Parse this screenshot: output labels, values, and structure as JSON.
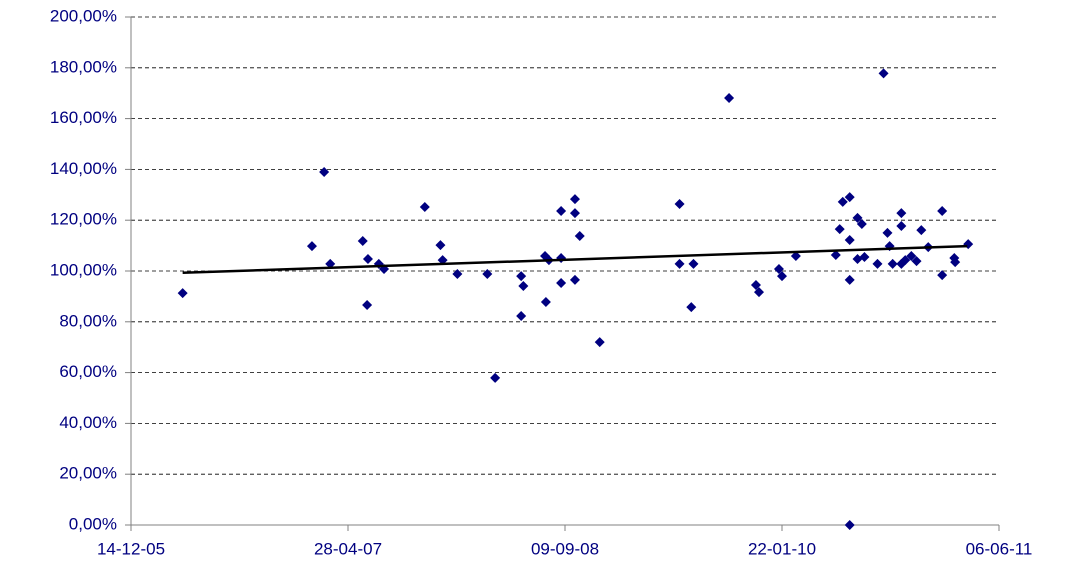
{
  "chart_data": {
    "type": "scatter",
    "color": "#000080",
    "x": [
      "2006-04-12",
      "2007-02-04",
      "2007-03-04",
      "2007-03-18",
      "2007-06-01",
      "2007-06-13",
      "2007-06-11",
      "2007-07-08",
      "2007-07-20",
      "2007-10-22",
      "2007-11-27",
      "2007-12-02",
      "2008-01-05",
      "2008-03-14",
      "2008-04-01",
      "2008-05-31",
      "2008-06-05",
      "2008-05-31",
      "2008-07-27",
      "2008-07-25",
      "2008-08-03",
      "2008-08-31",
      "2008-08-31",
      "2008-08-31",
      "2008-10-02",
      "2008-10-02",
      "2008-10-02",
      "2008-10-13",
      "2008-11-28",
      "2009-05-31",
      "2009-05-31",
      "2009-06-27",
      "2009-07-02",
      "2009-09-22",
      "2009-11-23",
      "2009-11-30",
      "2010-01-15",
      "2010-01-22",
      "2010-02-23",
      "2010-05-26",
      "2010-06-04",
      "2010-06-11",
      "2010-06-27",
      "2010-06-27",
      "2010-06-27",
      "2010-06-27",
      "2010-07-15",
      "2010-07-15",
      "2010-07-25",
      "2010-07-31",
      "2010-08-30",
      "2010-09-13",
      "2010-09-22",
      "2010-09-27",
      "2010-10-04",
      "2010-10-24",
      "2010-10-24",
      "2010-10-24",
      "2010-11-02",
      "2010-11-16",
      "2010-11-28",
      "2010-12-09",
      "2010-12-25",
      "2011-01-26",
      "2011-01-26",
      "2011-02-23",
      "2011-02-25",
      "2011-03-27"
    ],
    "values": [
      91.3,
      109.8,
      139,
      102.8,
      111.8,
      104.7,
      86.6,
      102.8,
      100.8,
      125.2,
      110.2,
      104.3,
      98.8,
      98.8,
      57.9,
      98,
      94.1,
      82.3,
      87.8,
      105.9,
      104.3,
      123.6,
      105.1,
      95.3,
      128.3,
      122.8,
      96.5,
      113.8,
      72,
      126.4,
      102.8,
      85.8,
      102.8,
      168.1,
      94.5,
      91.7,
      100.8,
      98,
      105.9,
      106.3,
      116.5,
      127.2,
      129.1,
      112.2,
      96.5,
      0,
      120.9,
      104.7,
      118.5,
      105.5,
      102.8,
      177.8,
      115,
      109.8,
      102.8,
      122.8,
      117.7,
      102.8,
      104.3,
      105.9,
      103.9,
      116.1,
      109.4,
      123.6,
      98.4,
      105.1,
      103.5,
      110.6
    ],
    "trendline": {
      "x": [
        "2006-04-12",
        "2011-03-25"
      ],
      "values": [
        99.3,
        109.8
      ],
      "color": "#000000"
    },
    "xlim": [
      "2005-12-14",
      "2011-06-06"
    ],
    "xticks": [
      {
        "value": "2005-12-14",
        "label": "14-12-05"
      },
      {
        "value": "2007-04-28",
        "label": "28-04-07"
      },
      {
        "value": "2008-09-09",
        "label": "09-09-08"
      },
      {
        "value": "2010-01-22",
        "label": "22-01-10"
      },
      {
        "value": "2011-06-06",
        "label": "06-06-11"
      }
    ],
    "ylim": [
      0,
      200
    ],
    "yticks": [
      {
        "value": 0,
        "label": "0,00%"
      },
      {
        "value": 20,
        "label": "20,00%"
      },
      {
        "value": 40,
        "label": "40,00%"
      },
      {
        "value": 60,
        "label": "60,00%"
      },
      {
        "value": 80,
        "label": "80,00%"
      },
      {
        "value": 100,
        "label": "100,00%"
      },
      {
        "value": 120,
        "label": "120,00%"
      },
      {
        "value": 140,
        "label": "140,00%"
      },
      {
        "value": 160,
        "label": "160,00%"
      },
      {
        "value": 180,
        "label": "180,00%"
      },
      {
        "value": 200,
        "label": "200,00%"
      }
    ],
    "grid": true
  }
}
